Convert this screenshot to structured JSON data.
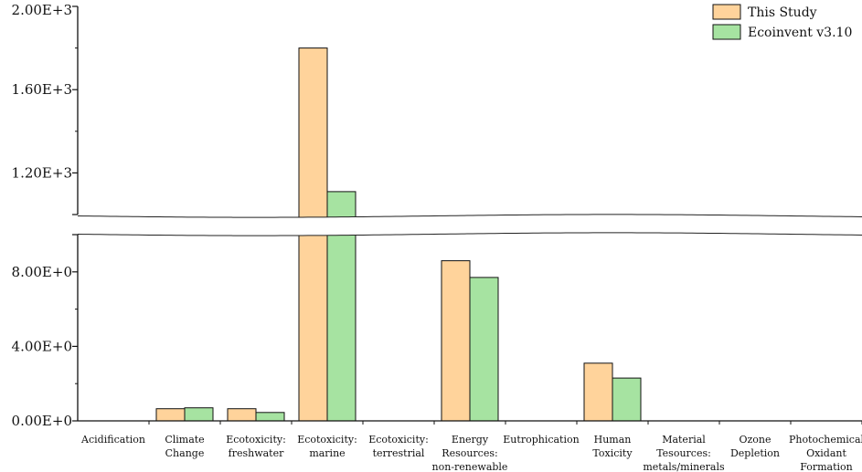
{
  "chart_data": {
    "type": "bar",
    "title": "",
    "xlabel": "",
    "ylabel": "",
    "axis_break": {
      "lower_range": [
        0,
        10
      ],
      "upper_range": [
        1000,
        2000
      ]
    },
    "categories": [
      [
        "Acidification"
      ],
      [
        "Climate",
        "Change"
      ],
      [
        "Ecotoxicity:",
        "freshwater"
      ],
      [
        "Ecotoxicity:",
        "marine"
      ],
      [
        "Ecotoxicity:",
        "terrestrial"
      ],
      [
        "Energy",
        "Resources:",
        "non-renewable"
      ],
      [
        "Eutrophication"
      ],
      [
        "Human",
        "Toxicity"
      ],
      [
        "Material",
        "Tesources:",
        "metals/minerals"
      ],
      [
        "Ozone",
        "Depletion"
      ],
      [
        "Photochemical",
        "Oxidant",
        "Formation"
      ]
    ],
    "y_ticks": [
      {
        "value": 0,
        "label": "0.00E+0"
      },
      {
        "value": 4,
        "label": "4.00E+0"
      },
      {
        "value": 8,
        "label": "8.00E+0"
      },
      {
        "value": 1200,
        "label": "1.20E+3"
      },
      {
        "value": 1600,
        "label": "1.60E+3"
      },
      {
        "value": 2000,
        "label": "2.00E+3"
      }
    ],
    "series": [
      {
        "name": "This Study",
        "color": "#FFD39B",
        "values": [
          0,
          0.65,
          0.65,
          1800,
          0,
          8.6,
          0,
          3.1,
          0,
          0,
          0
        ]
      },
      {
        "name": "Ecoinvent v3.10",
        "color": "#A6E3A1",
        "values": [
          0,
          0.7,
          0.45,
          1110,
          0,
          7.7,
          0,
          2.3,
          0,
          0,
          0
        ]
      }
    ],
    "legend_position": "top-right",
    "grid": false
  }
}
